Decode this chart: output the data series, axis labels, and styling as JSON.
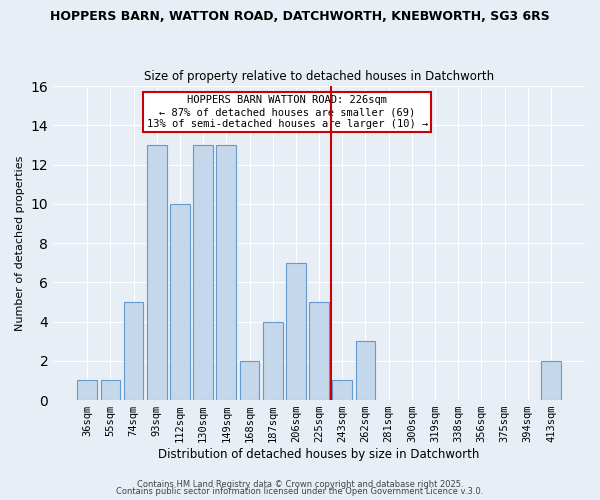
{
  "title": "HOPPERS BARN, WATTON ROAD, DATCHWORTH, KNEBWORTH, SG3 6RS",
  "subtitle": "Size of property relative to detached houses in Datchworth",
  "xlabel": "Distribution of detached houses by size in Datchworth",
  "ylabel": "Number of detached properties",
  "categories": [
    "36sqm",
    "55sqm",
    "74sqm",
    "93sqm",
    "112sqm",
    "130sqm",
    "149sqm",
    "168sqm",
    "187sqm",
    "206sqm",
    "225sqm",
    "243sqm",
    "262sqm",
    "281sqm",
    "300sqm",
    "319sqm",
    "338sqm",
    "356sqm",
    "375sqm",
    "394sqm",
    "413sqm"
  ],
  "values": [
    1,
    1,
    5,
    13,
    10,
    13,
    13,
    2,
    4,
    7,
    5,
    1,
    3,
    0,
    0,
    0,
    0,
    0,
    0,
    0,
    2
  ],
  "highlight_index": 10,
  "highlight_color": "#cc0000",
  "bar_color": "#c5d8eb",
  "bar_edge_color": "#6699cc",
  "ylim": [
    0,
    16
  ],
  "yticks": [
    0,
    2,
    4,
    6,
    8,
    10,
    12,
    14,
    16
  ],
  "annotation_title": "HOPPERS BARN WATTON ROAD: 226sqm",
  "annotation_line1": "← 87% of detached houses are smaller (69)",
  "annotation_line2": "13% of semi-detached houses are larger (10) →",
  "footer_line1": "Contains HM Land Registry data © Crown copyright and database right 2025.",
  "footer_line2": "Contains public sector information licensed under the Open Government Licence v.3.0.",
  "background_color": "#e8eef5",
  "plot_background": "#e8eef5",
  "title_fontsize": 9.0,
  "subtitle_fontsize": 8.5
}
